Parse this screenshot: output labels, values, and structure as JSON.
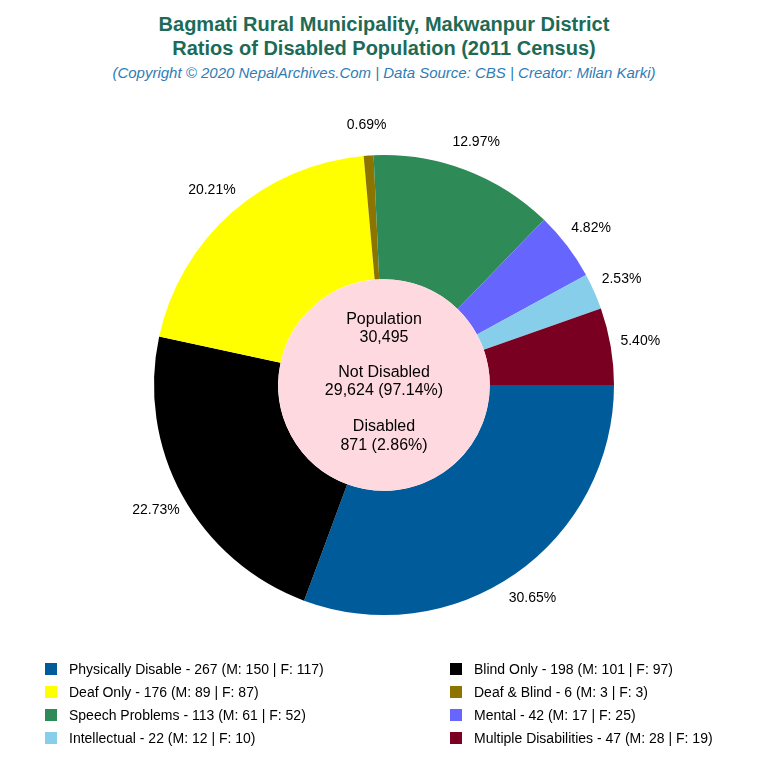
{
  "chart_data": {
    "type": "doughnut",
    "title": "Bagmati Rural Municipality, Makwanpur District\nRatios of Disabled Population (2011 Census)",
    "subtitle": "(Copyright © 2020 NepalArchives.Com | Data Source: CBS | Creator: Milan Karki)",
    "center_text": [
      "Population",
      "30,495",
      "Not Disabled",
      "29,624 (97.14%)",
      "Disabled",
      "871 (2.86%)"
    ],
    "categories": [
      "Physically Disable - 267 (M: 150 | F: 117)",
      "Blind Only - 198 (M: 101 | F: 97)",
      "Deaf Only - 176 (M: 89 | F: 87)",
      "Deaf & Blind - 6 (M: 3 | F: 3)",
      "Speech Problems - 113 (M: 61 | F: 52)",
      "Mental - 42 (M: 17 | F: 25)",
      "Intellectual - 22 (M: 12 | F: 10)",
      "Multiple Disabilities - 47 (M: 28 | F: 19)"
    ],
    "values": [
      30.65,
      22.73,
      20.21,
      0.69,
      12.97,
      4.82,
      2.53,
      5.4
    ],
    "value_labels": [
      "30.65%",
      "22.73%",
      "20.21%",
      "0.69%",
      "12.97%",
      "4.82%",
      "2.53%",
      "5.40%"
    ],
    "colors": [
      "#005b9a",
      "#000000",
      "#ffff00",
      "#8b7500",
      "#2e8b57",
      "#6666ff",
      "#87ceeb",
      "#7a0022"
    ],
    "data_labels": true,
    "legend": "bottom"
  }
}
